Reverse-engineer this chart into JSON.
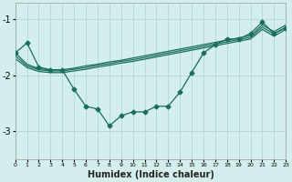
{
  "xlabel": "Humidex (Indice chaleur)",
  "background_color": "#d4eeee",
  "grid_color": "#aad4d4",
  "line_color": "#1a6e5e",
  "xlim": [
    0,
    23
  ],
  "ylim": [
    -3.5,
    -0.7
  ],
  "yticks": [
    -3,
    -2,
    -1
  ],
  "xticks": [
    0,
    1,
    2,
    3,
    4,
    5,
    6,
    7,
    8,
    9,
    10,
    11,
    12,
    13,
    14,
    15,
    16,
    17,
    18,
    19,
    20,
    21,
    22,
    23
  ],
  "main_x": [
    0,
    1,
    2,
    3,
    4,
    5,
    6,
    7,
    8,
    9,
    10,
    11,
    12,
    13,
    14,
    15,
    16,
    17,
    18,
    19,
    20,
    21,
    22,
    23
  ],
  "main_y": [
    -1.6,
    -1.42,
    -1.85,
    -1.9,
    -1.9,
    -2.25,
    -2.55,
    -2.6,
    -2.9,
    -2.72,
    -2.65,
    -2.65,
    -2.55,
    -2.55,
    -2.3,
    -1.95,
    -1.6,
    -1.45,
    -1.35,
    -1.35,
    -1.25,
    -1.05,
    -1.25,
    -1.15
  ],
  "smooth1_x": [
    0,
    1,
    2,
    3,
    4,
    5,
    6,
    7,
    8,
    9,
    10,
    11,
    12,
    13,
    14,
    15,
    16,
    17,
    18,
    19,
    20,
    21,
    22,
    23
  ],
  "smooth1_y": [
    -1.6,
    -1.8,
    -1.88,
    -1.9,
    -1.9,
    -1.87,
    -1.83,
    -1.8,
    -1.76,
    -1.73,
    -1.69,
    -1.65,
    -1.61,
    -1.57,
    -1.53,
    -1.49,
    -1.45,
    -1.41,
    -1.37,
    -1.33,
    -1.29,
    -1.1,
    -1.22,
    -1.1
  ],
  "smooth2_x": [
    0,
    1,
    2,
    3,
    4,
    5,
    6,
    7,
    8,
    9,
    10,
    11,
    12,
    13,
    14,
    15,
    16,
    17,
    18,
    19,
    20,
    21,
    22,
    23
  ],
  "smooth2_y": [
    -1.65,
    -1.83,
    -1.9,
    -1.92,
    -1.92,
    -1.89,
    -1.86,
    -1.82,
    -1.79,
    -1.75,
    -1.72,
    -1.68,
    -1.64,
    -1.6,
    -1.56,
    -1.52,
    -1.48,
    -1.44,
    -1.4,
    -1.36,
    -1.32,
    -1.14,
    -1.26,
    -1.14
  ],
  "smooth3_x": [
    0,
    1,
    2,
    3,
    4,
    5,
    6,
    7,
    8,
    9,
    10,
    11,
    12,
    13,
    14,
    15,
    16,
    17,
    18,
    19,
    20,
    21,
    22,
    23
  ],
  "smooth3_y": [
    -1.7,
    -1.86,
    -1.93,
    -1.95,
    -1.95,
    -1.92,
    -1.89,
    -1.85,
    -1.82,
    -1.78,
    -1.75,
    -1.71,
    -1.67,
    -1.63,
    -1.59,
    -1.55,
    -1.51,
    -1.47,
    -1.43,
    -1.39,
    -1.35,
    -1.18,
    -1.3,
    -1.18
  ]
}
